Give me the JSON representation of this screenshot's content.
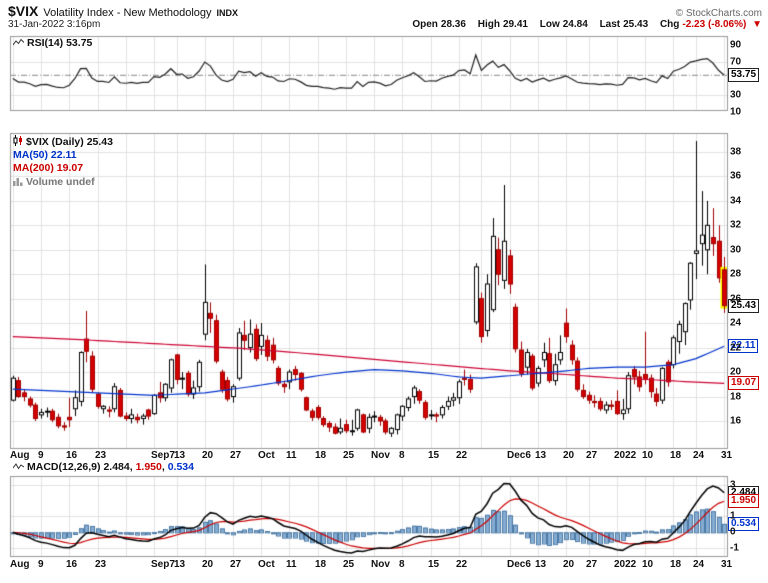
{
  "header": {
    "symbol": "$VIX",
    "name": "Volatility Index - New Methodology",
    "exchange": "INDX",
    "copyright": "© StockCharts.com",
    "datetime": "31-Jan-2022 3:16pm",
    "quote": {
      "open_label": "Open",
      "open": "28.36",
      "high_label": "High",
      "high": "29.41",
      "low_label": "Low",
      "low": "24.84",
      "last_label": "Last",
      "last": "25.43",
      "chg_label": "Chg",
      "chg": "-2.23 (-8.06%)",
      "direction_glyph": "▼"
    }
  },
  "rsi_panel": {
    "legend": "RSI(14) 53.75",
    "current": 53.75,
    "current_label": "53.75",
    "ticks": [
      90,
      70,
      30,
      10
    ],
    "grid_ticks": [
      70,
      30
    ]
  },
  "main_panel": {
    "legend_symbol": "$VIX (Daily) 25.43",
    "legend_ma50": "MA(50) 22.11",
    "legend_ma200": "MA(200) 19.07",
    "legend_volume": "Volume undef",
    "last_price": 25.43,
    "last_price_label": "25.43",
    "ma50_value": 22.11,
    "ma50_label": "22.11",
    "ma200_value": 19.07,
    "ma200_label": "19.07",
    "ticks": [
      38,
      36,
      34,
      32,
      30,
      28,
      26,
      24,
      22,
      20,
      18,
      16
    ]
  },
  "macd_panel": {
    "legend_name": "MACD(12,26,9)",
    "values": [
      "2.484",
      "1.950",
      "0.534"
    ],
    "macd_value": 2.484,
    "signal_value": 1.95,
    "hist_value": 0.534,
    "ticks": [
      3,
      1,
      0,
      -1
    ]
  },
  "x_axis": {
    "ticks": [
      {
        "index": 0,
        "label": "Aug"
      },
      {
        "index": 5,
        "label": "9"
      },
      {
        "index": 10,
        "label": "16"
      },
      {
        "index": 15,
        "label": "23"
      },
      {
        "index": 20,
        "label": ""
      },
      {
        "index": 25,
        "label": "Sep7"
      },
      {
        "index": 29,
        "label": "13"
      },
      {
        "index": 34,
        "label": "20"
      },
      {
        "index": 39,
        "label": "27"
      },
      {
        "index": 44,
        "label": "Oct"
      },
      {
        "index": 49,
        "label": "11"
      },
      {
        "index": 54,
        "label": "18"
      },
      {
        "index": 59,
        "label": "25"
      },
      {
        "index": 64,
        "label": "Nov"
      },
      {
        "index": 69,
        "label": "8"
      },
      {
        "index": 74,
        "label": "15"
      },
      {
        "index": 79,
        "label": "22"
      },
      {
        "index": 83,
        "label": ""
      },
      {
        "index": 88,
        "label": "Dec6"
      },
      {
        "index": 93,
        "label": "13"
      },
      {
        "index": 98,
        "label": "20"
      },
      {
        "index": 102,
        "label": "27"
      },
      {
        "index": 107,
        "label": "2022"
      },
      {
        "index": 112,
        "label": "10"
      },
      {
        "index": 117,
        "label": "18"
      },
      {
        "index": 121,
        "label": "24"
      },
      {
        "index": 126,
        "label": "31"
      }
    ]
  },
  "colors": {
    "candle_up_fill": "#ffffff",
    "candle_up_stroke": "#000000",
    "candle_down_fill": "#d40000",
    "candle_down_stroke": "#a00000",
    "ma50": "#0033cc",
    "ma200": "#cc0033",
    "rsi_line": "#222222",
    "rsi_guide": "#888888",
    "macd_line": "#000000",
    "signal_line": "#cc0000",
    "hist_fill": "#85add3",
    "hist_stroke": "#4d7ba6",
    "grid": "#e2e2e2",
    "border": "#999999",
    "highlight": "#ffff00",
    "negative": "#cc0000"
  },
  "chart_data": {
    "type": "candlestick",
    "title": "$VIX Volatility Index - New Methodology (Daily)",
    "timeframe": "Daily",
    "date_range": "Aug 2021 - 31 Jan 2022",
    "ylim": [
      13.79,
      39.55
    ],
    "yticks": [
      38,
      36,
      34,
      32,
      30,
      28,
      26,
      24,
      22,
      20,
      18,
      16
    ],
    "ohlc_columns": [
      "date",
      "open",
      "high",
      "low",
      "close"
    ],
    "ohlc": [
      [
        "Aug 2",
        17.7,
        19.7,
        17.6,
        19.5
      ],
      [
        "Aug 3",
        19.3,
        19.6,
        17.9,
        18.0
      ],
      [
        "Aug 4",
        18.3,
        18.6,
        17.6,
        18.0
      ],
      [
        "Aug 5",
        17.8,
        18.0,
        17.1,
        17.3
      ],
      [
        "Aug 6",
        17.3,
        17.5,
        16.0,
        16.2
      ],
      [
        "Aug 9",
        16.5,
        17.0,
        16.2,
        16.7
      ],
      [
        "Aug 10",
        16.8,
        17.1,
        16.3,
        16.8
      ],
      [
        "Aug 11",
        16.8,
        17.0,
        15.9,
        16.1
      ],
      [
        "Aug 12",
        16.3,
        16.6,
        15.4,
        15.6
      ],
      [
        "Aug 13",
        15.6,
        15.9,
        15.2,
        15.5
      ],
      [
        "Aug 16",
        16.3,
        17.9,
        15.5,
        16.1
      ],
      [
        "Aug 17",
        17.0,
        18.5,
        16.4,
        17.9
      ],
      [
        "Aug 18",
        17.6,
        21.7,
        17.2,
        21.6
      ],
      [
        "Aug 19",
        22.7,
        25.0,
        20.8,
        21.7
      ],
      [
        "Aug 20",
        21.3,
        21.7,
        18.3,
        18.6
      ],
      [
        "Aug 23",
        18.2,
        18.3,
        17.0,
        17.2
      ],
      [
        "Aug 24",
        17.0,
        17.3,
        16.6,
        17.2
      ],
      [
        "Aug 25",
        16.9,
        17.2,
        16.3,
        16.8
      ],
      [
        "Aug 26",
        17.0,
        19.1,
        16.7,
        18.8
      ],
      [
        "Aug 27",
        18.5,
        18.7,
        16.3,
        16.4
      ],
      [
        "Aug 30",
        16.4,
        16.7,
        16.0,
        16.2
      ],
      [
        "Aug 31",
        16.2,
        17.0,
        15.8,
        16.5
      ],
      [
        "Sep 1",
        16.3,
        16.6,
        15.8,
        16.1
      ],
      [
        "Sep 2",
        16.2,
        16.6,
        15.7,
        16.4
      ],
      [
        "Sep 3",
        16.9,
        17.0,
        16.1,
        16.4
      ],
      [
        "Sep 7",
        16.6,
        18.2,
        16.5,
        18.1
      ],
      [
        "Sep 8",
        18.3,
        19.2,
        17.5,
        17.9
      ],
      [
        "Sep 9",
        17.9,
        19.1,
        17.6,
        19.0
      ],
      [
        "Sep 10",
        18.7,
        21.1,
        18.3,
        21.0
      ],
      [
        "Sep 13",
        21.4,
        21.5,
        19.0,
        19.4
      ],
      [
        "Sep 14",
        19.5,
        20.0,
        18.6,
        19.5
      ],
      [
        "Sep 15",
        19.9,
        20.1,
        18.0,
        18.2
      ],
      [
        "Sep 16",
        18.2,
        19.3,
        17.8,
        18.7
      ],
      [
        "Sep 17",
        18.8,
        21.0,
        18.4,
        20.8
      ],
      [
        "Sep 20",
        23.1,
        28.8,
        22.6,
        25.7
      ],
      [
        "Sep 21",
        24.8,
        25.7,
        23.2,
        24.4
      ],
      [
        "Sep 22",
        24.2,
        24.7,
        20.7,
        20.9
      ],
      [
        "Sep 23",
        20.0,
        20.2,
        18.3,
        18.6
      ],
      [
        "Sep 24",
        19.3,
        19.6,
        17.6,
        17.8
      ],
      [
        "Sep 27",
        18.0,
        19.0,
        17.5,
        18.8
      ],
      [
        "Sep 28",
        19.5,
        23.6,
        19.3,
        23.2
      ],
      [
        "Sep 29",
        23.0,
        24.2,
        21.8,
        22.6
      ],
      [
        "Sep 30",
        22.0,
        24.3,
        21.6,
        23.1
      ],
      [
        "Oct 1",
        23.5,
        23.9,
        20.9,
        21.1
      ],
      [
        "Oct 4",
        22.1,
        24.0,
        21.4,
        23.0
      ],
      [
        "Oct 5",
        22.6,
        23.0,
        20.9,
        21.3
      ],
      [
        "Oct 6",
        22.2,
        22.8,
        20.7,
        21.0
      ],
      [
        "Oct 7",
        20.3,
        20.5,
        18.9,
        19.1
      ],
      [
        "Oct 8",
        19.0,
        19.3,
        18.3,
        18.8
      ],
      [
        "Oct 11",
        19.2,
        20.2,
        18.6,
        20.0
      ],
      [
        "Oct 12",
        20.2,
        20.5,
        19.3,
        19.8
      ],
      [
        "Oct 13",
        19.9,
        20.0,
        18.4,
        18.6
      ],
      [
        "Oct 14",
        17.9,
        18.0,
        16.8,
        16.9
      ],
      [
        "Oct 15",
        16.8,
        17.0,
        16.0,
        16.3
      ],
      [
        "Oct 18",
        17.1,
        17.3,
        16.1,
        16.3
      ],
      [
        "Oct 19",
        16.2,
        16.4,
        15.5,
        15.7
      ],
      [
        "Oct 20",
        15.8,
        16.0,
        15.1,
        15.5
      ],
      [
        "Oct 21",
        15.5,
        15.8,
        14.9,
        15.0
      ],
      [
        "Oct 22",
        15.1,
        16.2,
        14.9,
        15.4
      ],
      [
        "Oct 25",
        15.7,
        16.1,
        15.0,
        15.2
      ],
      [
        "Oct 26",
        15.2,
        16.1,
        14.8,
        15.2
      ],
      [
        "Oct 27",
        15.4,
        17.0,
        15.2,
        16.9
      ],
      [
        "Oct 28",
        16.5,
        16.6,
        15.0,
        15.1
      ],
      [
        "Oct 29",
        15.4,
        16.6,
        15.0,
        16.3
      ],
      [
        "Nov 1",
        16.4,
        16.8,
        15.9,
        16.4
      ],
      [
        "Nov 2",
        16.3,
        16.5,
        15.6,
        16.0
      ],
      [
        "Nov 3",
        16.0,
        16.2,
        14.9,
        15.1
      ],
      [
        "Nov 4",
        15.0,
        15.5,
        14.7,
        15.4
      ],
      [
        "Nov 5",
        15.3,
        16.6,
        14.9,
        16.5
      ],
      [
        "Nov 8",
        16.4,
        17.3,
        16.0,
        17.2
      ],
      [
        "Nov 9",
        17.1,
        18.0,
        16.8,
        17.8
      ],
      [
        "Nov 10",
        18.0,
        18.9,
        17.4,
        18.7
      ],
      [
        "Nov 11",
        18.4,
        18.6,
        17.4,
        17.7
      ],
      [
        "Nov 12",
        17.5,
        17.7,
        16.1,
        16.3
      ],
      [
        "Nov 15",
        16.5,
        16.9,
        16.1,
        16.5
      ],
      [
        "Nov 16",
        16.5,
        16.7,
        15.9,
        16.4
      ],
      [
        "Nov 17",
        16.5,
        17.3,
        16.2,
        17.1
      ],
      [
        "Nov 18",
        17.2,
        18.0,
        16.9,
        17.6
      ],
      [
        "Nov 19",
        17.7,
        18.3,
        17.2,
        17.9
      ],
      [
        "Nov 22",
        17.9,
        19.4,
        17.4,
        19.2
      ],
      [
        "Nov 23",
        19.5,
        20.2,
        18.9,
        19.4
      ],
      [
        "Nov 24",
        19.4,
        19.8,
        18.3,
        18.6
      ],
      [
        "Nov 26",
        24.1,
        28.9,
        23.9,
        28.6
      ],
      [
        "Nov 29",
        26.0,
        26.5,
        22.4,
        22.9
      ],
      [
        "Nov 30",
        23.4,
        28.0,
        22.9,
        27.2
      ],
      [
        "Dec 1",
        25.1,
        32.6,
        24.9,
        31.1
      ],
      [
        "Dec 2",
        30.0,
        31.0,
        27.1,
        28.0
      ],
      [
        "Dec 3",
        27.5,
        35.3,
        26.8,
        30.7
      ],
      [
        "Dec 6",
        29.5,
        30.0,
        26.4,
        27.2
      ],
      [
        "Dec 7",
        25.3,
        25.6,
        21.6,
        21.9
      ],
      [
        "Dec 8",
        21.8,
        22.5,
        19.6,
        19.9
      ],
      [
        "Dec 9",
        20.4,
        21.9,
        19.8,
        21.6
      ],
      [
        "Dec 10",
        21.3,
        21.5,
        18.5,
        18.7
      ],
      [
        "Dec 13",
        19.1,
        20.5,
        18.8,
        20.3
      ],
      [
        "Dec 14",
        21.0,
        22.4,
        20.4,
        21.6
      ],
      [
        "Dec 15",
        21.5,
        22.8,
        19.1,
        19.3
      ],
      [
        "Dec 16",
        19.3,
        21.5,
        18.9,
        20.6
      ],
      [
        "Dec 17",
        21.0,
        23.0,
        20.6,
        21.6
      ],
      [
        "Dec 20",
        24.0,
        25.2,
        22.4,
        22.9
      ],
      [
        "Dec 21",
        22.2,
        22.6,
        20.6,
        21.0
      ],
      [
        "Dec 22",
        20.9,
        21.2,
        18.4,
        18.6
      ],
      [
        "Dec 23",
        18.5,
        19.0,
        17.8,
        18.0
      ],
      [
        "Dec 27",
        18.1,
        18.4,
        17.4,
        17.7
      ],
      [
        "Dec 28",
        17.6,
        18.1,
        17.1,
        17.5
      ],
      [
        "Dec 29",
        17.6,
        17.9,
        16.8,
        17.0
      ],
      [
        "Dec 30",
        16.9,
        17.6,
        16.6,
        17.3
      ],
      [
        "Dec 31",
        17.3,
        17.7,
        16.9,
        17.2
      ],
      [
        "Jan 3",
        17.6,
        18.5,
        16.5,
        16.6
      ],
      [
        "Jan 4",
        16.6,
        17.8,
        16.1,
        16.9
      ],
      [
        "Jan 5",
        17.0,
        20.0,
        16.6,
        19.7
      ],
      [
        "Jan 6",
        20.2,
        20.5,
        19.0,
        19.6
      ],
      [
        "Jan 7",
        19.6,
        20.1,
        18.4,
        18.8
      ],
      [
        "Jan 10",
        19.8,
        23.3,
        19.0,
        19.4
      ],
      [
        "Jan 11",
        19.5,
        19.8,
        17.9,
        18.4
      ],
      [
        "Jan 12",
        18.2,
        18.7,
        17.2,
        17.6
      ],
      [
        "Jan 13",
        17.7,
        20.4,
        17.4,
        20.3
      ],
      [
        "Jan 14",
        20.8,
        21.0,
        18.8,
        19.2
      ],
      [
        "Jan 18",
        20.6,
        23.0,
        20.3,
        22.8
      ],
      [
        "Jan 19",
        22.5,
        24.2,
        21.5,
        23.9
      ],
      [
        "Jan 20",
        23.3,
        25.7,
        22.2,
        25.6
      ],
      [
        "Jan 21",
        25.9,
        29.0,
        25.1,
        28.9
      ],
      [
        "Jan 24",
        29.7,
        38.9,
        27.6,
        29.9
      ],
      [
        "Jan 25",
        30.5,
        34.8,
        28.7,
        31.2
      ],
      [
        "Jan 26",
        30.0,
        34.0,
        28.0,
        32.0
      ],
      [
        "Jan 27",
        31.0,
        33.4,
        29.5,
        30.5
      ],
      [
        "Jan 28",
        30.7,
        32.0,
        27.3,
        27.7
      ],
      [
        "Jan 31",
        28.36,
        29.41,
        24.84,
        25.43
      ]
    ],
    "overlays": {
      "ma50_keypoints": [
        [
          0,
          18.6
        ],
        [
          10,
          18.4
        ],
        [
          20,
          18.2
        ],
        [
          25,
          18.1
        ],
        [
          34,
          18.3
        ],
        [
          42,
          18.8
        ],
        [
          49,
          19.3
        ],
        [
          54,
          19.7
        ],
        [
          59,
          20.0
        ],
        [
          64,
          20.2
        ],
        [
          69,
          20.1
        ],
        [
          74,
          19.9
        ],
        [
          79,
          19.6
        ],
        [
          83,
          19.5
        ],
        [
          88,
          19.7
        ],
        [
          93,
          19.9
        ],
        [
          98,
          20.1
        ],
        [
          102,
          20.3
        ],
        [
          107,
          20.4
        ],
        [
          112,
          20.4
        ],
        [
          117,
          20.6
        ],
        [
          121,
          21.1
        ],
        [
          124,
          21.7
        ],
        [
          126,
          22.11
        ]
      ],
      "ma200_keypoints": [
        [
          0,
          22.9
        ],
        [
          10,
          22.7
        ],
        [
          20,
          22.45
        ],
        [
          30,
          22.2
        ],
        [
          40,
          21.95
        ],
        [
          50,
          21.6
        ],
        [
          60,
          21.2
        ],
        [
          70,
          20.8
        ],
        [
          80,
          20.4
        ],
        [
          88,
          20.1
        ],
        [
          98,
          19.8
        ],
        [
          107,
          19.5
        ],
        [
          114,
          19.35
        ],
        [
          120,
          19.2
        ],
        [
          126,
          19.07
        ]
      ]
    },
    "sub_charts": [
      {
        "type": "line",
        "name": "RSI(14)",
        "derived_from": "close",
        "last": 53.75,
        "guides": [
          70,
          30
        ],
        "ylim": [
          12,
          101
        ],
        "yticks": [
          90,
          70,
          30,
          10
        ]
      },
      {
        "type": "bar",
        "name": "MACD(12,26,9)",
        "derived_from": "close",
        "last": {
          "macd": 2.484,
          "signal": 1.95,
          "hist": 0.534
        },
        "ylim": [
          -1.49,
          3.55
        ],
        "yticks": [
          3,
          1,
          0,
          -1
        ]
      }
    ]
  }
}
